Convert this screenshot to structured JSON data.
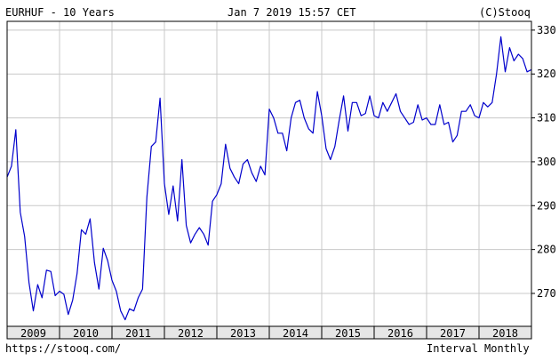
{
  "header": {
    "symbol_period": "EURHUF - 10 Years",
    "datetime": "Jan 7 2019 15:57 CET",
    "copyright": "(C)Stooq"
  },
  "footer": {
    "url": "https://stooq.com/",
    "interval": "Interval Monthly"
  },
  "colors": {
    "line": "#0000cc",
    "grid": "#c8c8c8",
    "frame": "#000000",
    "axis_band": "#e6e6e6"
  },
  "chart_data": {
    "type": "line",
    "title": "EURHUF - 10 Years",
    "x_start": "2009-01",
    "x_end": "2019-01",
    "x_ticks": [
      "2009",
      "2010",
      "2011",
      "2012",
      "2013",
      "2014",
      "2015",
      "2016",
      "2017",
      "2018"
    ],
    "ylim": [
      262.5,
      332.0
    ],
    "y_ticks": [
      270,
      280,
      290,
      300,
      310,
      320,
      330
    ],
    "grid": true,
    "series": [
      {
        "values": [
          296.5,
          299.0,
          307.3,
          288.5,
          283.0,
          272.5,
          266.0,
          272.0,
          269.0,
          275.3,
          275.0,
          269.5,
          270.5,
          269.8,
          265.2,
          268.5,
          274.5,
          284.5,
          283.5,
          287.0,
          277.0,
          271.0,
          280.3,
          277.5,
          273.0,
          270.5,
          266.0,
          264.0,
          266.5,
          266.0,
          269.0,
          271.0,
          292.0,
          303.5,
          304.5,
          314.5,
          295.0,
          288.0,
          294.5,
          286.5,
          300.5,
          285.5,
          281.5,
          283.5,
          285.0,
          283.5,
          281.0,
          291.0,
          292.5,
          295.0,
          304.0,
          298.5,
          296.5,
          295.0,
          299.5,
          300.5,
          297.5,
          295.5,
          299.0,
          297.0,
          312.0,
          310.0,
          306.5,
          306.5,
          302.5,
          310.0,
          313.5,
          314.0,
          310.0,
          307.5,
          306.5,
          316.0,
          310.5,
          303.0,
          300.5,
          303.5,
          309.5,
          315.0,
          307.0,
          313.5,
          313.5,
          310.5,
          311.0,
          315.0,
          310.5,
          310.0,
          313.5,
          311.5,
          313.5,
          315.5,
          311.5,
          310.0,
          308.5,
          309.0,
          313.0,
          309.5,
          310.0,
          308.5,
          308.5,
          313.0,
          308.5,
          309.0,
          304.5,
          306.0,
          311.5,
          311.5,
          313.0,
          310.5,
          310.0,
          313.5,
          312.5,
          313.5,
          320.0,
          328.5,
          320.5,
          326.0,
          323.0,
          324.5,
          323.5,
          320.5,
          321.0
        ]
      }
    ]
  }
}
